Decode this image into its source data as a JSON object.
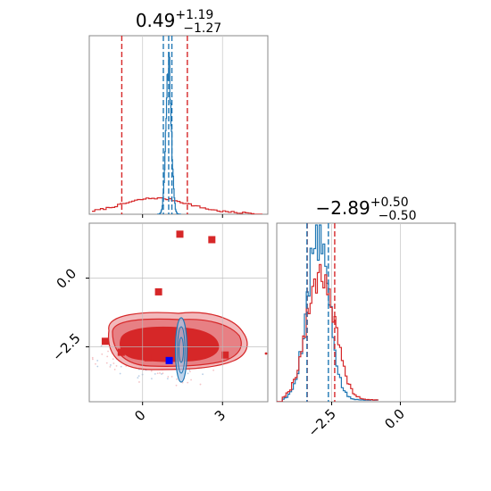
{
  "chart_data": {
    "type": "corner",
    "parameters": [
      "p1",
      "p2"
    ],
    "colors": {
      "model_a": "#d62728",
      "model_b": "#1f77b4",
      "truth": "#0000ff"
    },
    "panels": {
      "p1_hist": {
        "title": {
          "value": "0.49",
          "plus": "+1.19",
          "minus": "−1.27"
        },
        "xlim": [
          -2.0,
          4.7
        ],
        "red_quantiles": [
          -0.78,
          0.49,
          1.68
        ],
        "blue_quantiles": [
          0.78,
          0.98,
          1.1
        ],
        "grid_x": [
          0,
          3
        ]
      },
      "p2_hist": {
        "title": {
          "value": "−2.89",
          "plus": "+0.50",
          "minus": "−0.50"
        },
        "xlim": [
          -4.5,
          2.0
        ],
        "red_quantiles": [
          -3.39,
          -2.89,
          -2.39
        ],
        "blue_quantiles": [
          -3.4,
          -2.62
        ],
        "grid_x": [
          -2.5,
          0.0
        ],
        "tick_labels": [
          "−2.5",
          "0.0"
        ]
      },
      "joint": {
        "xlim": [
          -2.0,
          4.7
        ],
        "ylim": [
          -4.5,
          2.0
        ],
        "grid_x": [
          0,
          3
        ],
        "grid_y": [
          -2.5,
          0.0
        ],
        "x_tick_labels": [
          "0",
          "3"
        ],
        "y_tick_labels": [
          "−2.5",
          "0.0"
        ],
        "red_markers": [
          {
            "x": -1.4,
            "y": -2.3
          },
          {
            "x": -0.8,
            "y": -2.7
          },
          {
            "x": 0.2,
            "y": -2.9
          },
          {
            "x": 0.6,
            "y": -0.5
          },
          {
            "x": 1.4,
            "y": 1.6
          },
          {
            "x": 2.6,
            "y": 1.4
          },
          {
            "x": 3.1,
            "y": -2.8
          }
        ],
        "blue_markers": [
          {
            "x": 1.0,
            "y": -3.0
          }
        ]
      }
    }
  }
}
